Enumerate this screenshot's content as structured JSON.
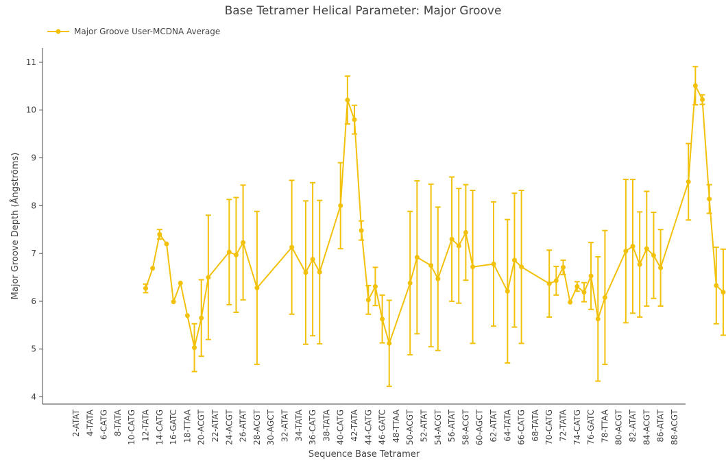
{
  "chart_data": {
    "type": "line",
    "title": "Base Tetramer Helical Parameter: Major Groove",
    "xlabel": "Sequence Base Tetramer",
    "ylabel": "Major Groove Depth (Ångströms)",
    "ylim": [
      3.85,
      11.3
    ],
    "yticks": [
      4,
      5,
      6,
      7,
      8,
      9,
      10,
      11
    ],
    "grid": false,
    "legend_position": "top-left",
    "color": "#f2c10c",
    "categories": [
      "2-ATAT",
      "4-TATA",
      "6-CATG",
      "8-TATA",
      "10-CATG",
      "12-TATA",
      "14-CATG",
      "16-GATC",
      "18-TTAA",
      "20-ACGT",
      "22-ATAT",
      "24-ACGT",
      "26-ATAT",
      "28-ACGT",
      "30-AGCT",
      "32-ATAT",
      "34-TATA",
      "36-CATG",
      "38-TATA",
      "40-CATG",
      "42-TATA",
      "44-CATG",
      "46-GATC",
      "48-TTAA",
      "50-ACGT",
      "52-ATAT",
      "54-ACGT",
      "56-ATAT",
      "58-ACGT",
      "60-AGCT",
      "62-ATAT",
      "64-TATA",
      "66-CATG",
      "68-TATA",
      "70-CATG",
      "72-TATA",
      "74-CATG",
      "76-GATC",
      "78-TTAA",
      "80-ACGT",
      "82-ATAT",
      "84-ACGT",
      "86-ATAT",
      "88-ACGT"
    ],
    "series": [
      {
        "name": "Major Groove User-MCDNA Average",
        "points": [
          {
            "x": 5.0,
            "y": 6.27,
            "lo": 6.18,
            "hi": 6.36
          },
          {
            "x": 5.5,
            "y": 6.69,
            "lo": null,
            "hi": null
          },
          {
            "x": 6.0,
            "y": 7.4,
            "lo": 7.3,
            "hi": 7.5
          },
          {
            "x": 6.5,
            "y": 7.2,
            "lo": null,
            "hi": null
          },
          {
            "x": 7.0,
            "y": 5.99,
            "lo": null,
            "hi": null
          },
          {
            "x": 7.5,
            "y": 6.38,
            "lo": null,
            "hi": null
          },
          {
            "x": 8.0,
            "y": 5.7,
            "lo": null,
            "hi": null
          },
          {
            "x": 8.5,
            "y": 5.03,
            "lo": 4.53,
            "hi": 5.53
          },
          {
            "x": 9.0,
            "y": 5.65,
            "lo": 4.85,
            "hi": 6.45
          },
          {
            "x": 9.5,
            "y": 6.5,
            "lo": 5.2,
            "hi": 7.8
          },
          {
            "x": 11.0,
            "y": 7.03,
            "lo": 5.93,
            "hi": 8.13
          },
          {
            "x": 11.5,
            "y": 6.97,
            "lo": 5.77,
            "hi": 8.17
          },
          {
            "x": 12.0,
            "y": 7.23,
            "lo": 6.03,
            "hi": 8.43
          },
          {
            "x": 13.0,
            "y": 6.28,
            "lo": 4.68,
            "hi": 7.88
          },
          {
            "x": 15.5,
            "y": 7.13,
            "lo": 5.73,
            "hi": 8.53
          },
          {
            "x": 16.5,
            "y": 6.6,
            "lo": 5.1,
            "hi": 8.1
          },
          {
            "x": 17.0,
            "y": 6.88,
            "lo": 5.28,
            "hi": 8.48
          },
          {
            "x": 17.5,
            "y": 6.61,
            "lo": 5.11,
            "hi": 8.11
          },
          {
            "x": 19.0,
            "y": 8.0,
            "lo": 7.1,
            "hi": 8.9
          },
          {
            "x": 19.5,
            "y": 10.21,
            "lo": 9.71,
            "hi": 10.71
          },
          {
            "x": 20.0,
            "y": 9.8,
            "lo": 9.5,
            "hi": 10.1
          },
          {
            "x": 20.5,
            "y": 7.48,
            "lo": 7.28,
            "hi": 7.68
          },
          {
            "x": 21.0,
            "y": 6.03,
            "lo": 5.73,
            "hi": 6.33
          },
          {
            "x": 21.5,
            "y": 6.31,
            "lo": 5.91,
            "hi": 6.71
          },
          {
            "x": 22.0,
            "y": 5.63,
            "lo": 5.13,
            "hi": 6.13
          },
          {
            "x": 22.5,
            "y": 5.12,
            "lo": 4.22,
            "hi": 6.02
          },
          {
            "x": 24.0,
            "y": 6.38,
            "lo": 4.88,
            "hi": 7.88
          },
          {
            "x": 24.5,
            "y": 6.92,
            "lo": 5.32,
            "hi": 8.52
          },
          {
            "x": 25.5,
            "y": 6.75,
            "lo": 5.05,
            "hi": 8.45
          },
          {
            "x": 26.0,
            "y": 6.47,
            "lo": 4.97,
            "hi": 7.97
          },
          {
            "x": 27.0,
            "y": 7.3,
            "lo": 6.0,
            "hi": 8.6
          },
          {
            "x": 27.5,
            "y": 7.16,
            "lo": 5.96,
            "hi": 8.36
          },
          {
            "x": 28.0,
            "y": 7.44,
            "lo": 6.44,
            "hi": 8.44
          },
          {
            "x": 28.5,
            "y": 6.72,
            "lo": 5.12,
            "hi": 8.32
          },
          {
            "x": 30.0,
            "y": 6.78,
            "lo": 5.48,
            "hi": 8.08
          },
          {
            "x": 31.0,
            "y": 6.21,
            "lo": 4.71,
            "hi": 7.71
          },
          {
            "x": 31.5,
            "y": 6.86,
            "lo": 5.46,
            "hi": 8.26
          },
          {
            "x": 32.0,
            "y": 6.72,
            "lo": 5.12,
            "hi": 8.32
          },
          {
            "x": 34.0,
            "y": 6.37,
            "lo": 5.67,
            "hi": 7.07
          },
          {
            "x": 34.5,
            "y": 6.43,
            "lo": 6.13,
            "hi": 6.73
          },
          {
            "x": 35.0,
            "y": 6.71,
            "lo": 6.56,
            "hi": 6.86
          },
          {
            "x": 35.5,
            "y": 5.98,
            "lo": null,
            "hi": null
          },
          {
            "x": 36.0,
            "y": 6.31,
            "lo": 6.21,
            "hi": 6.41
          },
          {
            "x": 36.5,
            "y": 6.19,
            "lo": 5.99,
            "hi": 6.39
          },
          {
            "x": 37.0,
            "y": 6.53,
            "lo": 5.83,
            "hi": 7.23
          },
          {
            "x": 37.5,
            "y": 5.63,
            "lo": 4.33,
            "hi": 6.93
          },
          {
            "x": 38.0,
            "y": 6.08,
            "lo": 4.68,
            "hi": 7.48
          },
          {
            "x": 39.5,
            "y": 7.05,
            "lo": 5.55,
            "hi": 8.55
          },
          {
            "x": 40.0,
            "y": 7.15,
            "lo": 5.75,
            "hi": 8.55
          },
          {
            "x": 40.5,
            "y": 6.77,
            "lo": 5.67,
            "hi": 7.87
          },
          {
            "x": 41.0,
            "y": 7.1,
            "lo": 5.9,
            "hi": 8.3
          },
          {
            "x": 41.5,
            "y": 6.96,
            "lo": 6.06,
            "hi": 7.86
          },
          {
            "x": 42.0,
            "y": 6.7,
            "lo": 5.9,
            "hi": 7.5
          },
          {
            "x": 44.0,
            "y": 8.5,
            "lo": 7.7,
            "hi": 9.3
          },
          {
            "x": 44.5,
            "y": 10.51,
            "lo": 10.11,
            "hi": 10.91
          },
          {
            "x": 45.0,
            "y": 10.22,
            "lo": 10.12,
            "hi": 10.32
          },
          {
            "x": 45.5,
            "y": 8.14,
            "lo": 7.84,
            "hi": 8.44
          },
          {
            "x": 46.0,
            "y": 6.33,
            "lo": 5.53,
            "hi": 7.13
          },
          {
            "x": 46.5,
            "y": 6.19,
            "lo": 5.29,
            "hi": 7.09
          }
        ]
      }
    ]
  }
}
